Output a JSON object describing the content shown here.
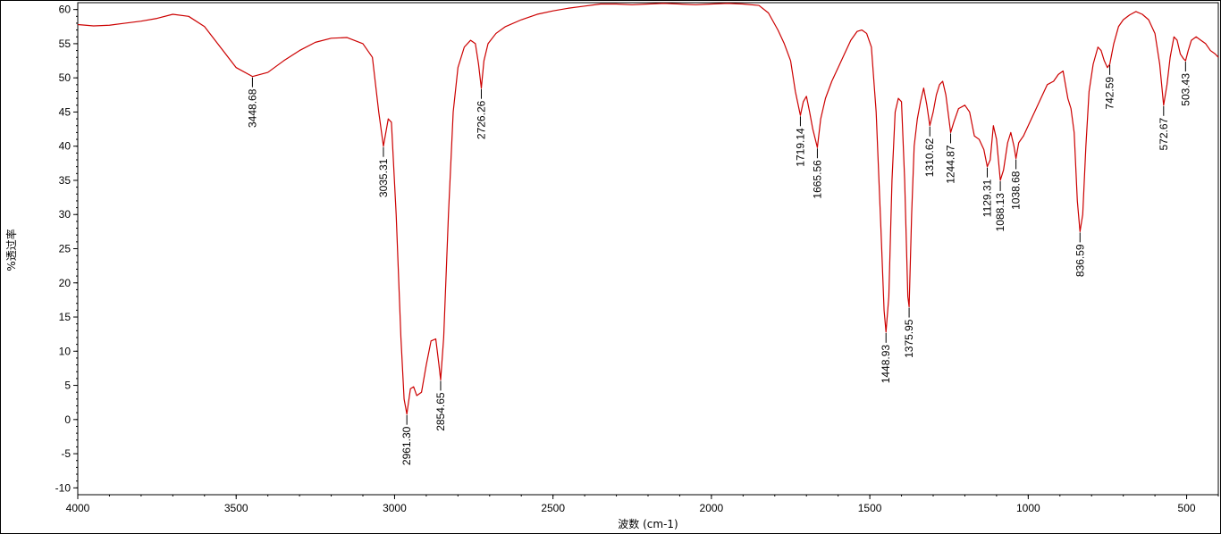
{
  "chart_data": {
    "type": "line",
    "title": "",
    "xlabel": "波数 (cm-1)",
    "ylabel": "%透过率",
    "xlim": [
      4000,
      400
    ],
    "ylim": [
      -11,
      61
    ],
    "x_ticks": [
      4000,
      3500,
      3000,
      2500,
      2000,
      1500,
      1000,
      500
    ],
    "y_ticks": [
      60,
      55,
      50,
      45,
      40,
      35,
      30,
      25,
      20,
      15,
      10,
      5,
      0,
      -5,
      -10
    ],
    "grid": false,
    "series": [
      {
        "color": "#cc0000",
        "points": [
          [
            4000,
            57.8
          ],
          [
            3950,
            57.6
          ],
          [
            3900,
            57.7
          ],
          [
            3850,
            58.0
          ],
          [
            3800,
            58.3
          ],
          [
            3750,
            58.7
          ],
          [
            3700,
            59.3
          ],
          [
            3650,
            59.0
          ],
          [
            3600,
            57.5
          ],
          [
            3550,
            54.5
          ],
          [
            3500,
            51.5
          ],
          [
            3448.68,
            50.2
          ],
          [
            3400,
            50.8
          ],
          [
            3350,
            52.5
          ],
          [
            3300,
            54.0
          ],
          [
            3250,
            55.2
          ],
          [
            3200,
            55.8
          ],
          [
            3150,
            55.9
          ],
          [
            3100,
            55.0
          ],
          [
            3070,
            53.0
          ],
          [
            3050,
            45.0
          ],
          [
            3035.31,
            40.0
          ],
          [
            3020,
            44.0
          ],
          [
            3010,
            43.5
          ],
          [
            2995,
            30.0
          ],
          [
            2980,
            12.0
          ],
          [
            2970,
            3.0
          ],
          [
            2961.3,
            0.8
          ],
          [
            2950,
            4.5
          ],
          [
            2940,
            4.8
          ],
          [
            2930,
            3.5
          ],
          [
            2915,
            4.0
          ],
          [
            2900,
            8.0
          ],
          [
            2885,
            11.5
          ],
          [
            2870,
            11.8
          ],
          [
            2860,
            8.0
          ],
          [
            2854.65,
            5.8
          ],
          [
            2845,
            12.0
          ],
          [
            2830,
            30.0
          ],
          [
            2815,
            45.0
          ],
          [
            2800,
            51.5
          ],
          [
            2780,
            54.5
          ],
          [
            2760,
            55.5
          ],
          [
            2745,
            55.0
          ],
          [
            2735,
            52.0
          ],
          [
            2726.26,
            48.5
          ],
          [
            2718,
            52.5
          ],
          [
            2705,
            55.0
          ],
          [
            2680,
            56.5
          ],
          [
            2650,
            57.5
          ],
          [
            2600,
            58.5
          ],
          [
            2550,
            59.3
          ],
          [
            2500,
            59.8
          ],
          [
            2450,
            60.2
          ],
          [
            2400,
            60.5
          ],
          [
            2350,
            60.8
          ],
          [
            2300,
            60.8
          ],
          [
            2250,
            60.7
          ],
          [
            2200,
            60.8
          ],
          [
            2150,
            60.9
          ],
          [
            2100,
            60.8
          ],
          [
            2050,
            60.7
          ],
          [
            2000,
            60.8
          ],
          [
            1950,
            60.9
          ],
          [
            1900,
            60.8
          ],
          [
            1850,
            60.6
          ],
          [
            1820,
            59.5
          ],
          [
            1790,
            57.0
          ],
          [
            1770,
            55.0
          ],
          [
            1750,
            52.5
          ],
          [
            1735,
            48.0
          ],
          [
            1719.14,
            44.5
          ],
          [
            1710,
            46.5
          ],
          [
            1700,
            47.3
          ],
          [
            1690,
            45.0
          ],
          [
            1680,
            42.5
          ],
          [
            1665.56,
            39.8
          ],
          [
            1655,
            44.0
          ],
          [
            1640,
            47.0
          ],
          [
            1620,
            49.5
          ],
          [
            1600,
            51.5
          ],
          [
            1580,
            53.5
          ],
          [
            1560,
            55.5
          ],
          [
            1540,
            56.8
          ],
          [
            1525,
            57.0
          ],
          [
            1510,
            56.5
          ],
          [
            1495,
            54.5
          ],
          [
            1480,
            45.0
          ],
          [
            1465,
            28.0
          ],
          [
            1455,
            16.0
          ],
          [
            1448.93,
            12.8
          ],
          [
            1440,
            18.0
          ],
          [
            1430,
            35.0
          ],
          [
            1420,
            45.0
          ],
          [
            1410,
            47.0
          ],
          [
            1400,
            46.5
          ],
          [
            1390,
            35.0
          ],
          [
            1380,
            18.0
          ],
          [
            1375.95,
            16.5
          ],
          [
            1368,
            30.0
          ],
          [
            1360,
            40.0
          ],
          [
            1350,
            44.0
          ],
          [
            1340,
            46.5
          ],
          [
            1330,
            48.5
          ],
          [
            1320,
            46.0
          ],
          [
            1310.62,
            43.0
          ],
          [
            1300,
            45.0
          ],
          [
            1290,
            47.5
          ],
          [
            1280,
            49.0
          ],
          [
            1270,
            49.5
          ],
          [
            1260,
            47.5
          ],
          [
            1244.87,
            42.0
          ],
          [
            1235,
            43.5
          ],
          [
            1220,
            45.5
          ],
          [
            1200,
            46.0
          ],
          [
            1185,
            45.0
          ],
          [
            1170,
            41.5
          ],
          [
            1155,
            41.0
          ],
          [
            1140,
            39.5
          ],
          [
            1129.31,
            37.0
          ],
          [
            1120,
            38.0
          ],
          [
            1110,
            43.0
          ],
          [
            1100,
            41.0
          ],
          [
            1088.13,
            35.0
          ],
          [
            1078,
            36.5
          ],
          [
            1065,
            40.5
          ],
          [
            1055,
            42.0
          ],
          [
            1045,
            40.0
          ],
          [
            1038.68,
            38.2
          ],
          [
            1030,
            40.5
          ],
          [
            1015,
            41.5
          ],
          [
            1000,
            43.0
          ],
          [
            980,
            45.0
          ],
          [
            960,
            47.0
          ],
          [
            940,
            49.0
          ],
          [
            920,
            49.5
          ],
          [
            905,
            50.5
          ],
          [
            890,
            51.0
          ],
          [
            875,
            47.0
          ],
          [
            865,
            45.5
          ],
          [
            855,
            42.0
          ],
          [
            845,
            32.0
          ],
          [
            836.59,
            27.5
          ],
          [
            828,
            30.0
          ],
          [
            818,
            40.0
          ],
          [
            808,
            48.0
          ],
          [
            795,
            52.0
          ],
          [
            780,
            54.5
          ],
          [
            770,
            54.0
          ],
          [
            760,
            52.5
          ],
          [
            750,
            51.5
          ],
          [
            742.59,
            52.0
          ],
          [
            730,
            55.0
          ],
          [
            715,
            57.5
          ],
          [
            700,
            58.5
          ],
          [
            680,
            59.2
          ],
          [
            660,
            59.7
          ],
          [
            640,
            59.3
          ],
          [
            620,
            58.5
          ],
          [
            600,
            56.5
          ],
          [
            585,
            52.0
          ],
          [
            572.67,
            46.0
          ],
          [
            562,
            49.0
          ],
          [
            552,
            53.0
          ],
          [
            540,
            56.0
          ],
          [
            530,
            55.5
          ],
          [
            520,
            53.5
          ],
          [
            510,
            52.8
          ],
          [
            503.43,
            52.5
          ],
          [
            495,
            54.0
          ],
          [
            485,
            55.5
          ],
          [
            470,
            56.0
          ],
          [
            455,
            55.5
          ],
          [
            440,
            55.0
          ],
          [
            425,
            54.0
          ],
          [
            410,
            53.5
          ],
          [
            400,
            53.0
          ]
        ]
      }
    ],
    "annotations": [
      {
        "x": 3448.68,
        "y": 50.2,
        "label": "3448.68"
      },
      {
        "x": 3035.31,
        "y": 40.0,
        "label": "3035.31"
      },
      {
        "x": 2961.3,
        "y": 0.8,
        "label": "2961.30"
      },
      {
        "x": 2854.65,
        "y": 5.8,
        "label": "2854.65"
      },
      {
        "x": 2726.26,
        "y": 48.5,
        "label": "2726.26"
      },
      {
        "x": 1719.14,
        "y": 44.5,
        "label": "1719.14"
      },
      {
        "x": 1665.56,
        "y": 39.8,
        "label": "1665.56"
      },
      {
        "x": 1448.93,
        "y": 12.8,
        "label": "1448.93"
      },
      {
        "x": 1375.95,
        "y": 16.5,
        "label": "1375.95"
      },
      {
        "x": 1310.62,
        "y": 43.0,
        "label": "1310.62"
      },
      {
        "x": 1244.87,
        "y": 42.0,
        "label": "1244.87"
      },
      {
        "x": 1129.31,
        "y": 37.0,
        "label": "1129.31"
      },
      {
        "x": 1088.13,
        "y": 35.0,
        "label": "1088.13"
      },
      {
        "x": 1038.68,
        "y": 38.2,
        "label": "1038.68"
      },
      {
        "x": 836.59,
        "y": 27.5,
        "label": "836.59"
      },
      {
        "x": 742.59,
        "y": 52.0,
        "label": "742.59"
      },
      {
        "x": 572.67,
        "y": 46.0,
        "label": "572.67"
      },
      {
        "x": 503.43,
        "y": 52.5,
        "label": "503.43"
      }
    ]
  }
}
